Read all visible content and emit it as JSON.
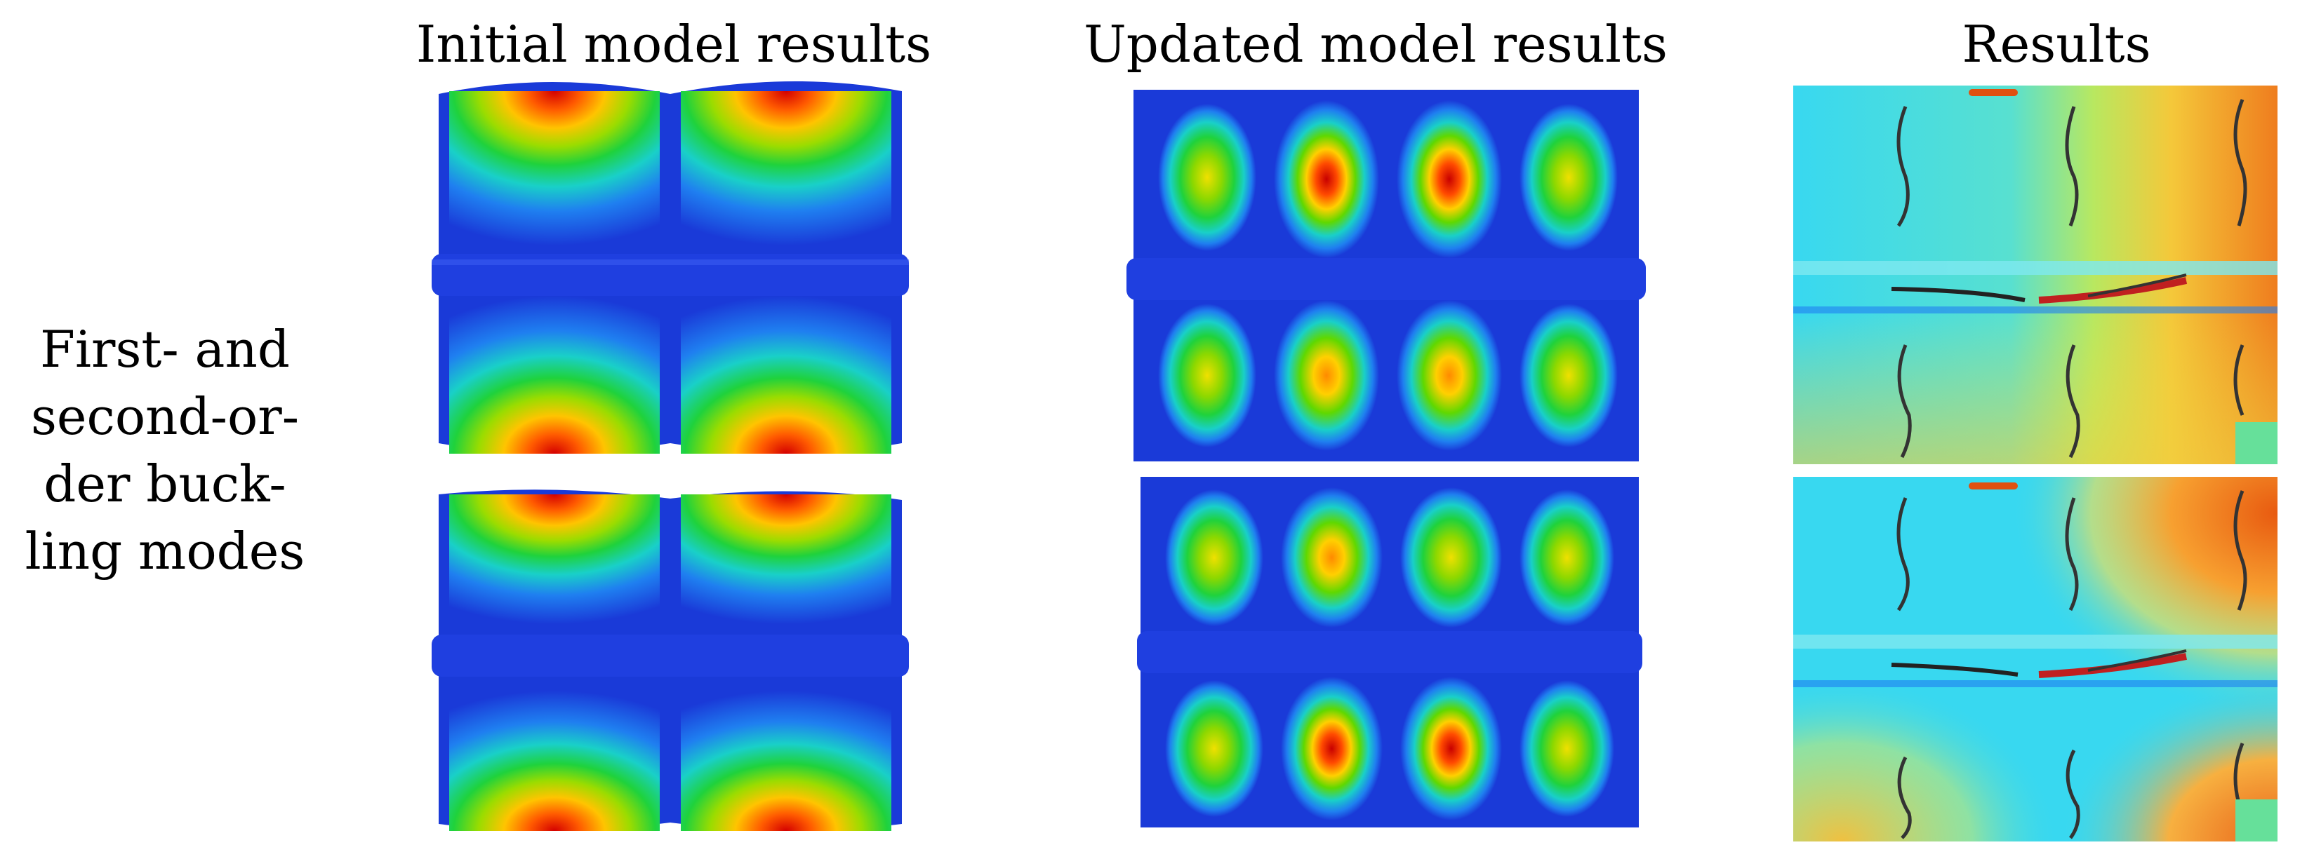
{
  "columns": [
    {
      "title": "Initial model results"
    },
    {
      "title": "Updated model results"
    },
    {
      "title": "Results"
    }
  ],
  "row_label": {
    "lines": [
      "First- and",
      "second-or-",
      "der buck-",
      "ling modes"
    ]
  },
  "colors": {
    "background": "#ffffff",
    "fem_base": "#1a3ad8",
    "flange": "#1f3fe0",
    "test_base": "#38d8f0",
    "test_hot": "#ef7d1e"
  }
}
